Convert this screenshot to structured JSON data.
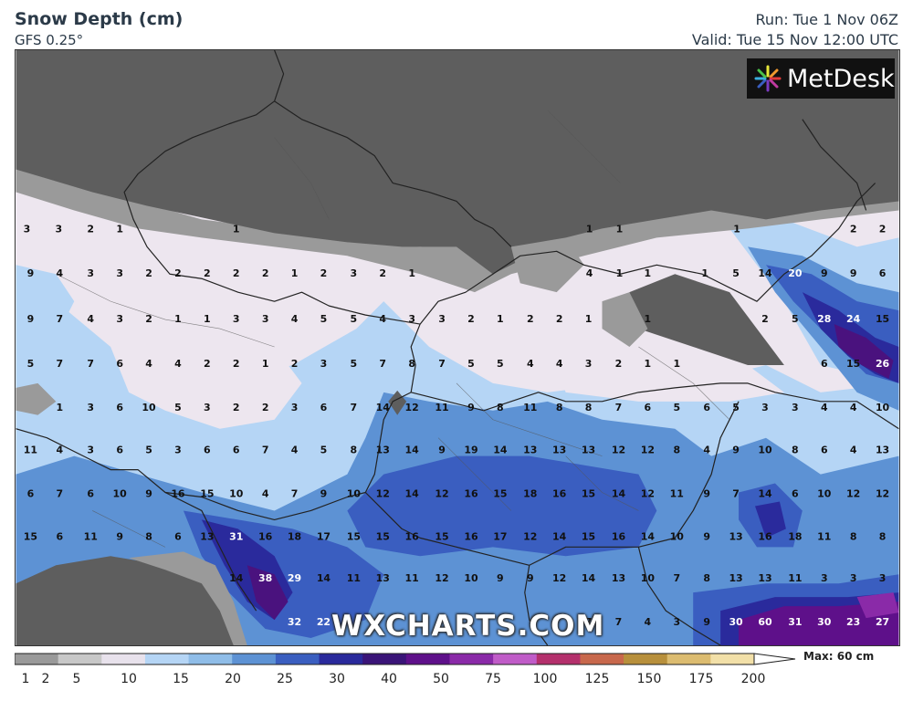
{
  "header": {
    "title": "Snow Depth (cm)",
    "model": "GFS 0.25°",
    "run": "Run: Tue 1 Nov 06Z",
    "valid": "Valid: Tue 15 Nov 12:00 UTC"
  },
  "logo": {
    "text": "MetDesk",
    "icon": "metdesk-starburst-icon"
  },
  "watermark": "WXCHARTS.COM",
  "legend": {
    "max_label": "Max: 60 cm",
    "tick_labels": [
      "1",
      "2",
      "5",
      "10",
      "15",
      "20",
      "25",
      "30",
      "40",
      "50",
      "75",
      "100",
      "125",
      "150",
      "175",
      "200"
    ],
    "colors": [
      "#9a9a9a",
      "#c8c8c8",
      "#e8e2ec",
      "#b5d5f5",
      "#8fbde8",
      "#5d92d4",
      "#3a5ec0",
      "#2a2a9c",
      "#3a1478",
      "#5e108a",
      "#8a2aa8",
      "#c05cc8",
      "#b4306c",
      "#c8684c",
      "#b8903c",
      "#dcbc70",
      "#f2e0a8"
    ]
  },
  "map_colors": {
    "no_snow_land": "#5e5e5e",
    "light_grey": "#9a9a9a",
    "whiteish": "#ede6ef",
    "pale_blue": "#b5d5f5",
    "mid_blue": "#5d92d4",
    "deep_blue": "#3a5ec0",
    "navy": "#2a2a9c",
    "purple": "#4a127e",
    "magenta": "#7a1a9a",
    "sea": "#5a5a5a"
  },
  "values": [
    [
      "3",
      28,
      254
    ],
    [
      "3",
      63,
      254
    ],
    [
      "2",
      98,
      254
    ],
    [
      "1",
      130,
      254
    ],
    [
      "1",
      258,
      254
    ],
    [
      "1",
      646,
      254
    ],
    [
      "1",
      679,
      254
    ],
    [
      "1",
      808,
      254
    ],
    [
      "2",
      936,
      254
    ],
    [
      "2",
      968,
      254
    ],
    [
      "9",
      32,
      303
    ],
    [
      "4",
      64,
      303
    ],
    [
      "3",
      98,
      303
    ],
    [
      "3",
      130,
      303
    ],
    [
      "2",
      162,
      303
    ],
    [
      "2",
      194,
      303
    ],
    [
      "2",
      226,
      303
    ],
    [
      "2",
      258,
      303
    ],
    [
      "2",
      290,
      303
    ],
    [
      "1",
      322,
      303
    ],
    [
      "2",
      354,
      303
    ],
    [
      "3",
      387,
      303
    ],
    [
      "2",
      419,
      303
    ],
    [
      "1",
      451,
      303
    ],
    [
      "4",
      646,
      303
    ],
    [
      "1",
      679,
      303
    ],
    [
      "1",
      710,
      303
    ],
    [
      "1",
      773,
      303
    ],
    [
      "5",
      807,
      303
    ],
    [
      "14",
      839,
      303
    ],
    [
      "20",
      872,
      303
    ],
    [
      "9",
      904,
      303
    ],
    [
      "9",
      936,
      303
    ],
    [
      "6",
      968,
      303
    ],
    [
      "9",
      32,
      353
    ],
    [
      "7",
      64,
      353
    ],
    [
      "4",
      98,
      353
    ],
    [
      "3",
      130,
      353
    ],
    [
      "2",
      162,
      353
    ],
    [
      "1",
      194,
      353
    ],
    [
      "1",
      226,
      353
    ],
    [
      "3",
      258,
      353
    ],
    [
      "3",
      290,
      353
    ],
    [
      "4",
      322,
      353
    ],
    [
      "5",
      354,
      353
    ],
    [
      "5",
      387,
      353
    ],
    [
      "4",
      419,
      353
    ],
    [
      "3",
      451,
      353
    ],
    [
      "3",
      484,
      353
    ],
    [
      "2",
      516,
      353
    ],
    [
      "1",
      548,
      353
    ],
    [
      "2",
      581,
      353
    ],
    [
      "2",
      613,
      353
    ],
    [
      "1",
      645,
      353
    ],
    [
      "1",
      710,
      353
    ],
    [
      "2",
      839,
      353
    ],
    [
      "5",
      872,
      353
    ],
    [
      "28",
      904,
      353
    ],
    [
      "24",
      936,
      353
    ],
    [
      "15",
      968,
      353
    ],
    [
      "5",
      32,
      402
    ],
    [
      "7",
      64,
      402
    ],
    [
      "7",
      98,
      402
    ],
    [
      "6",
      130,
      402
    ],
    [
      "4",
      162,
      402
    ],
    [
      "4",
      194,
      402
    ],
    [
      "2",
      226,
      402
    ],
    [
      "2",
      258,
      402
    ],
    [
      "1",
      290,
      402
    ],
    [
      "2",
      322,
      402
    ],
    [
      "3",
      354,
      402
    ],
    [
      "5",
      387,
      402
    ],
    [
      "7",
      419,
      402
    ],
    [
      "8",
      451,
      402
    ],
    [
      "7",
      484,
      402
    ],
    [
      "5",
      516,
      402
    ],
    [
      "5",
      548,
      402
    ],
    [
      "4",
      581,
      402
    ],
    [
      "4",
      613,
      402
    ],
    [
      "3",
      645,
      402
    ],
    [
      "2",
      678,
      402
    ],
    [
      "1",
      710,
      402
    ],
    [
      "1",
      742,
      402
    ],
    [
      "6",
      904,
      402
    ],
    [
      "15",
      936,
      402
    ],
    [
      "26",
      968,
      402
    ],
    [
      "1",
      64,
      450
    ],
    [
      "3",
      98,
      450
    ],
    [
      "6",
      130,
      450
    ],
    [
      "10",
      162,
      450
    ],
    [
      "5",
      194,
      450
    ],
    [
      "3",
      226,
      450
    ],
    [
      "2",
      258,
      450
    ],
    [
      "2",
      290,
      450
    ],
    [
      "3",
      322,
      450
    ],
    [
      "6",
      354,
      450
    ],
    [
      "7",
      387,
      450
    ],
    [
      "14",
      419,
      450
    ],
    [
      "12",
      451,
      450
    ],
    [
      "11",
      484,
      450
    ],
    [
      "9",
      516,
      450
    ],
    [
      "8",
      548,
      450
    ],
    [
      "11",
      581,
      450
    ],
    [
      "8",
      613,
      450
    ],
    [
      "8",
      645,
      450
    ],
    [
      "7",
      678,
      450
    ],
    [
      "6",
      710,
      450
    ],
    [
      "5",
      742,
      450
    ],
    [
      "6",
      775,
      450
    ],
    [
      "5",
      807,
      450
    ],
    [
      "3",
      839,
      450
    ],
    [
      "3",
      872,
      450
    ],
    [
      "4",
      904,
      450
    ],
    [
      "4",
      936,
      450
    ],
    [
      "10",
      968,
      450
    ],
    [
      "11",
      32,
      497
    ],
    [
      "4",
      64,
      497
    ],
    [
      "3",
      98,
      497
    ],
    [
      "6",
      130,
      497
    ],
    [
      "5",
      162,
      497
    ],
    [
      "3",
      194,
      497
    ],
    [
      "6",
      226,
      497
    ],
    [
      "6",
      258,
      497
    ],
    [
      "7",
      290,
      497
    ],
    [
      "4",
      322,
      497
    ],
    [
      "5",
      354,
      497
    ],
    [
      "8",
      387,
      497
    ],
    [
      "13",
      419,
      497
    ],
    [
      "14",
      451,
      497
    ],
    [
      "9",
      484,
      497
    ],
    [
      "19",
      516,
      497
    ],
    [
      "14",
      548,
      497
    ],
    [
      "13",
      581,
      497
    ],
    [
      "13",
      613,
      497
    ],
    [
      "13",
      645,
      497
    ],
    [
      "12",
      678,
      497
    ],
    [
      "12",
      710,
      497
    ],
    [
      "8",
      742,
      497
    ],
    [
      "4",
      775,
      497
    ],
    [
      "9",
      807,
      497
    ],
    [
      "10",
      839,
      497
    ],
    [
      "8",
      872,
      497
    ],
    [
      "6",
      904,
      497
    ],
    [
      "4",
      936,
      497
    ],
    [
      "13",
      968,
      497
    ],
    [
      "6",
      32,
      545
    ],
    [
      "7",
      64,
      545
    ],
    [
      "6",
      98,
      545
    ],
    [
      "10",
      130,
      545
    ],
    [
      "9",
      162,
      545
    ],
    [
      "16",
      194,
      545
    ],
    [
      "15",
      226,
      545
    ],
    [
      "10",
      258,
      545
    ],
    [
      "4",
      290,
      545
    ],
    [
      "7",
      322,
      545
    ],
    [
      "9",
      354,
      545
    ],
    [
      "10",
      387,
      545
    ],
    [
      "12",
      419,
      545
    ],
    [
      "14",
      451,
      545
    ],
    [
      "12",
      484,
      545
    ],
    [
      "16",
      516,
      545
    ],
    [
      "15",
      548,
      545
    ],
    [
      "18",
      581,
      545
    ],
    [
      "16",
      613,
      545
    ],
    [
      "15",
      645,
      545
    ],
    [
      "14",
      678,
      545
    ],
    [
      "12",
      710,
      545
    ],
    [
      "11",
      742,
      545
    ],
    [
      "9",
      775,
      545
    ],
    [
      "7",
      807,
      545
    ],
    [
      "14",
      839,
      545
    ],
    [
      "6",
      872,
      545
    ],
    [
      "10",
      904,
      545
    ],
    [
      "12",
      936,
      545
    ],
    [
      "12",
      968,
      545
    ],
    [
      "15",
      32,
      592
    ],
    [
      "6",
      64,
      592
    ],
    [
      "11",
      98,
      592
    ],
    [
      "9",
      130,
      592
    ],
    [
      "8",
      162,
      592
    ],
    [
      "6",
      194,
      592
    ],
    [
      "13",
      226,
      592
    ],
    [
      "31",
      258,
      592
    ],
    [
      "16",
      290,
      592
    ],
    [
      "18",
      322,
      592
    ],
    [
      "17",
      354,
      592
    ],
    [
      "15",
      387,
      592
    ],
    [
      "15",
      419,
      592
    ],
    [
      "16",
      451,
      592
    ],
    [
      "15",
      484,
      592
    ],
    [
      "16",
      516,
      592
    ],
    [
      "17",
      548,
      592
    ],
    [
      "12",
      581,
      592
    ],
    [
      "14",
      613,
      592
    ],
    [
      "15",
      645,
      592
    ],
    [
      "16",
      678,
      592
    ],
    [
      "14",
      710,
      592
    ],
    [
      "10",
      742,
      592
    ],
    [
      "9",
      775,
      592
    ],
    [
      "13",
      807,
      592
    ],
    [
      "16",
      839,
      592
    ],
    [
      "18",
      872,
      592
    ],
    [
      "11",
      904,
      592
    ],
    [
      "8",
      936,
      592
    ],
    [
      "8",
      968,
      592
    ],
    [
      "14",
      258,
      638
    ],
    [
      "38",
      290,
      638
    ],
    [
      "29",
      322,
      638
    ],
    [
      "14",
      354,
      638
    ],
    [
      "11",
      387,
      638
    ],
    [
      "13",
      419,
      638
    ],
    [
      "11",
      451,
      638
    ],
    [
      "12",
      484,
      638
    ],
    [
      "10",
      516,
      638
    ],
    [
      "9",
      548,
      638
    ],
    [
      "9",
      581,
      638
    ],
    [
      "12",
      613,
      638
    ],
    [
      "14",
      645,
      638
    ],
    [
      "13",
      678,
      638
    ],
    [
      "10",
      710,
      638
    ],
    [
      "7",
      742,
      638
    ],
    [
      "8",
      775,
      638
    ],
    [
      "13",
      807,
      638
    ],
    [
      "13",
      839,
      638
    ],
    [
      "11",
      872,
      638
    ],
    [
      "3",
      904,
      638
    ],
    [
      "3",
      936,
      638
    ],
    [
      "3",
      968,
      638
    ],
    [
      "32",
      322,
      686
    ],
    [
      "22",
      354,
      686
    ],
    [
      "7",
      645,
      686
    ],
    [
      "7",
      678,
      686
    ],
    [
      "4",
      710,
      686
    ],
    [
      "3",
      742,
      686
    ],
    [
      "9",
      775,
      686
    ],
    [
      "30",
      807,
      686
    ],
    [
      "60",
      839,
      686
    ],
    [
      "31",
      872,
      686
    ],
    [
      "30",
      904,
      686
    ],
    [
      "23",
      936,
      686
    ],
    [
      "27",
      968,
      686
    ]
  ],
  "white_labels": [
    "20",
    "28",
    "24",
    "15",
    "26",
    "31",
    "38",
    "29",
    "32",
    "22",
    "30",
    "60",
    "31",
    "30",
    "23",
    "27",
    "18"
  ]
}
